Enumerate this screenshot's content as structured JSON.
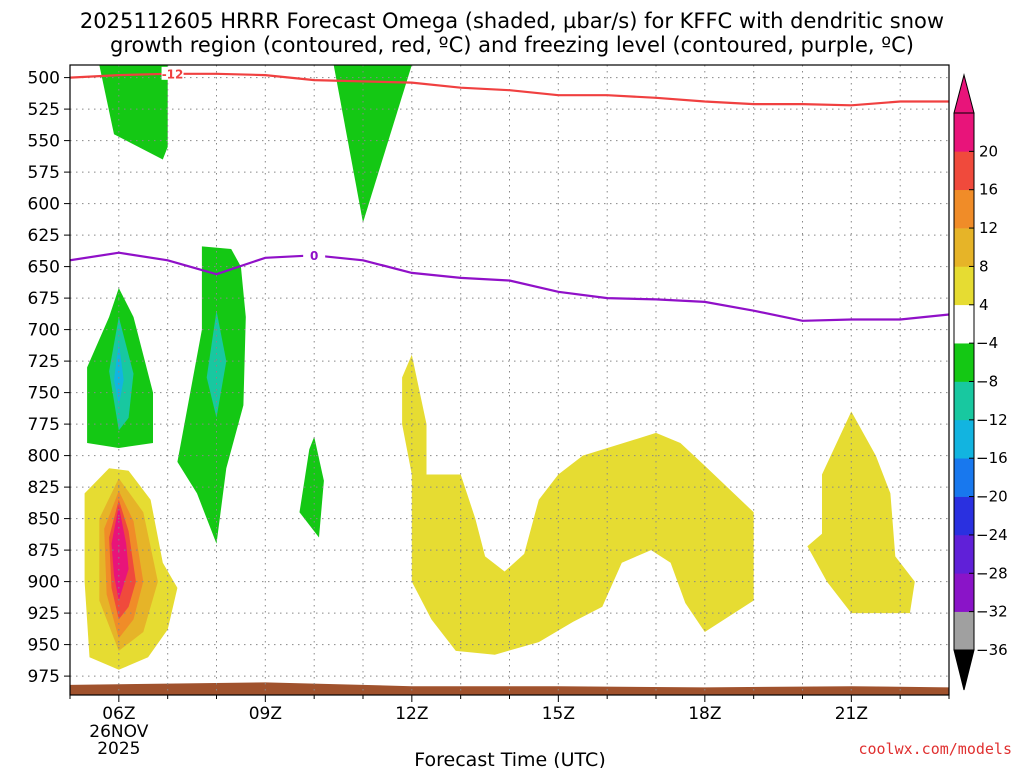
{
  "chart_data": {
    "type": "heatmap",
    "title": "2025112605 HRRR Forecast Omega (shaded, µbar/s) for KFFC with dendritic snow",
    "subtitle": "growth region (contoured, red, ºC) and freezing level (contoured, purple, ºC)",
    "xlabel": "Forecast Time (UTC)",
    "ylabel": "",
    "credit": "coolwx.com/models",
    "xlim": [
      5,
      23
    ],
    "ylim": [
      990,
      490
    ],
    "x_ticks": [
      {
        "x": 6,
        "label": "06Z",
        "date": "26NOV",
        "year": "2025"
      },
      {
        "x": 9,
        "label": "09Z"
      },
      {
        "x": 12,
        "label": "12Z"
      },
      {
        "x": 15,
        "label": "15Z"
      },
      {
        "x": 18,
        "label": "18Z"
      },
      {
        "x": 21,
        "label": "21Z"
      }
    ],
    "y_ticks": [
      500,
      525,
      550,
      575,
      600,
      625,
      650,
      675,
      700,
      725,
      750,
      775,
      800,
      825,
      850,
      875,
      900,
      925,
      950,
      975
    ],
    "colorbar": {
      "levels": [
        -36,
        -32,
        -28,
        -24,
        -20,
        -16,
        -12,
        -8,
        -4,
        4,
        8,
        12,
        16,
        20
      ],
      "colors": [
        "#a0a0a0",
        "#8a14c8",
        "#6020d8",
        "#2a30e0",
        "#1878ee",
        "#12b4e0",
        "#18c8a0",
        "#14c814",
        "#ffffff",
        "#e6dc32",
        "#e6b428",
        "#f08c28",
        "#f04a3c",
        "#e8147a"
      ],
      "under_color": "#000000",
      "over_color": "#e8147a"
    },
    "colors": {
      "green": "#14c814",
      "teal": "#18c8a0",
      "cyan": "#12b4e0",
      "yellow": "#e6dc32",
      "gold": "#e6b428",
      "orange": "#f08c28",
      "red": "#f04a3c",
      "magenta": "#e8147a",
      "terrain": "#a0522d",
      "dgz_line": "#f04040",
      "freezing_line": "#9010c8"
    },
    "terrain_level": [
      [
        5,
        982
      ],
      [
        9,
        980
      ],
      [
        12,
        983
      ],
      [
        15,
        983
      ],
      [
        18,
        984
      ],
      [
        21,
        983
      ],
      [
        23,
        984
      ]
    ],
    "contours": [
      {
        "name": "dendritic snow growth region",
        "label": "-12",
        "label_x": 7.1,
        "points": [
          [
            5,
            500
          ],
          [
            6,
            498
          ],
          [
            7,
            497
          ],
          [
            8,
            497
          ],
          [
            9,
            498
          ],
          [
            10,
            502
          ],
          [
            11,
            503
          ],
          [
            12,
            504
          ],
          [
            13,
            508
          ],
          [
            14,
            510
          ],
          [
            15,
            514
          ],
          [
            16,
            514
          ],
          [
            17,
            516
          ],
          [
            18,
            519
          ],
          [
            19,
            521
          ],
          [
            20,
            521
          ],
          [
            21,
            522
          ],
          [
            22,
            519
          ],
          [
            23,
            519
          ]
        ]
      },
      {
        "name": "freezing level",
        "label": "0",
        "label_x": 10,
        "points": [
          [
            5,
            645
          ],
          [
            6,
            639
          ],
          [
            7,
            645
          ],
          [
            8,
            656
          ],
          [
            9,
            643
          ],
          [
            10,
            641
          ],
          [
            11,
            645
          ],
          [
            12,
            655
          ],
          [
            13,
            659
          ],
          [
            14,
            661
          ],
          [
            15,
            670
          ],
          [
            16,
            675
          ],
          [
            17,
            676
          ],
          [
            18,
            678
          ],
          [
            19,
            685
          ],
          [
            20,
            693
          ],
          [
            21,
            692
          ],
          [
            22,
            692
          ],
          [
            23,
            688
          ]
        ]
      }
    ],
    "shaded_regions": [
      {
        "value": -4,
        "points": [
          [
            5.6,
            490
          ],
          [
            5.9,
            545
          ],
          [
            6.9,
            565
          ],
          [
            7.0,
            555
          ],
          [
            7.0,
            490
          ]
        ]
      },
      {
        "value": -4,
        "points": [
          [
            10.4,
            490
          ],
          [
            11.0,
            615
          ],
          [
            12.0,
            490
          ]
        ]
      },
      {
        "value": -4,
        "points": [
          [
            7.7,
            634
          ],
          [
            8.3,
            636
          ],
          [
            8.5,
            650
          ],
          [
            8.6,
            690
          ],
          [
            8.55,
            760
          ],
          [
            8.2,
            810
          ],
          [
            8.0,
            870
          ],
          [
            7.6,
            830
          ],
          [
            7.2,
            805
          ],
          [
            7.7,
            700
          ]
        ]
      },
      {
        "value": -8,
        "points": [
          [
            8.0,
            685
          ],
          [
            8.2,
            725
          ],
          [
            8.0,
            770
          ],
          [
            7.8,
            738
          ]
        ]
      },
      {
        "value": -4,
        "points": [
          [
            5.35,
            790
          ],
          [
            5.35,
            730
          ],
          [
            5.8,
            690
          ],
          [
            6.0,
            667
          ],
          [
            6.3,
            690
          ],
          [
            6.7,
            750
          ],
          [
            6.7,
            790
          ],
          [
            6.0,
            794
          ]
        ]
      },
      {
        "value": -8,
        "points": [
          [
            5.8,
            733
          ],
          [
            6.0,
            690
          ],
          [
            6.3,
            735
          ],
          [
            6.2,
            770
          ],
          [
            6.0,
            780
          ]
        ]
      },
      {
        "value": -12,
        "points": [
          [
            5.9,
            740
          ],
          [
            6.0,
            710
          ],
          [
            6.1,
            740
          ],
          [
            6.0,
            760
          ]
        ]
      },
      {
        "value": -4,
        "points": [
          [
            10.0,
            785
          ],
          [
            10.2,
            820
          ],
          [
            10.1,
            865
          ],
          [
            9.7,
            845
          ],
          [
            9.9,
            795
          ]
        ]
      },
      {
        "value": 4,
        "points": [
          [
            5.3,
            830
          ],
          [
            5.8,
            810
          ],
          [
            6.2,
            812
          ],
          [
            6.65,
            835
          ],
          [
            6.9,
            885
          ],
          [
            7.2,
            905
          ],
          [
            7.0,
            938
          ],
          [
            6.6,
            960
          ],
          [
            6.0,
            970
          ],
          [
            5.4,
            960
          ],
          [
            5.3,
            900
          ]
        ]
      },
      {
        "value": 8,
        "points": [
          [
            5.6,
            850
          ],
          [
            6.0,
            818
          ],
          [
            6.5,
            845
          ],
          [
            6.8,
            900
          ],
          [
            6.5,
            940
          ],
          [
            6.0,
            955
          ],
          [
            5.6,
            915
          ]
        ]
      },
      {
        "value": 12,
        "points": [
          [
            5.7,
            858
          ],
          [
            6.0,
            828
          ],
          [
            6.3,
            852
          ],
          [
            6.5,
            900
          ],
          [
            6.3,
            930
          ],
          [
            6.0,
            945
          ],
          [
            5.75,
            910
          ]
        ]
      },
      {
        "value": 16,
        "points": [
          [
            5.8,
            865
          ],
          [
            6.0,
            835
          ],
          [
            6.2,
            860
          ],
          [
            6.35,
            900
          ],
          [
            6.2,
            920
          ],
          [
            6.0,
            930
          ],
          [
            5.85,
            905
          ]
        ]
      },
      {
        "value": 20,
        "points": [
          [
            5.85,
            870
          ],
          [
            6.0,
            840
          ],
          [
            6.15,
            870
          ],
          [
            6.2,
            890
          ],
          [
            6.0,
            915
          ],
          [
            5.9,
            895
          ]
        ]
      },
      {
        "value": 4,
        "points": [
          [
            11.8,
            738
          ],
          [
            12.0,
            720
          ],
          [
            12.3,
            775
          ],
          [
            12.3,
            815
          ],
          [
            13.0,
            815
          ],
          [
            13.3,
            850
          ],
          [
            13.5,
            880
          ],
          [
            13.9,
            892
          ],
          [
            14.3,
            878
          ],
          [
            14.6,
            835
          ],
          [
            15.0,
            815
          ],
          [
            15.5,
            800
          ],
          [
            16.5,
            788
          ],
          [
            17.0,
            782
          ],
          [
            17.5,
            790
          ],
          [
            18.0,
            808
          ],
          [
            19.0,
            845
          ],
          [
            19.0,
            915
          ],
          [
            18.0,
            940
          ],
          [
            17.6,
            917
          ],
          [
            17.3,
            885
          ],
          [
            16.9,
            875
          ],
          [
            16.3,
            885
          ],
          [
            15.9,
            920
          ],
          [
            15.3,
            932
          ],
          [
            14.6,
            948
          ],
          [
            13.7,
            958
          ],
          [
            12.9,
            955
          ],
          [
            12.4,
            930
          ],
          [
            12.0,
            900
          ],
          [
            12.0,
            815
          ],
          [
            11.8,
            775
          ]
        ]
      },
      {
        "value": 4,
        "points": [
          [
            20.4,
            815
          ],
          [
            21.0,
            765
          ],
          [
            21.5,
            800
          ],
          [
            21.8,
            830
          ],
          [
            21.9,
            880
          ],
          [
            22.3,
            900
          ],
          [
            22.2,
            925
          ],
          [
            21.0,
            925
          ],
          [
            20.5,
            900
          ],
          [
            20.1,
            872
          ],
          [
            20.4,
            862
          ]
        ]
      }
    ]
  }
}
